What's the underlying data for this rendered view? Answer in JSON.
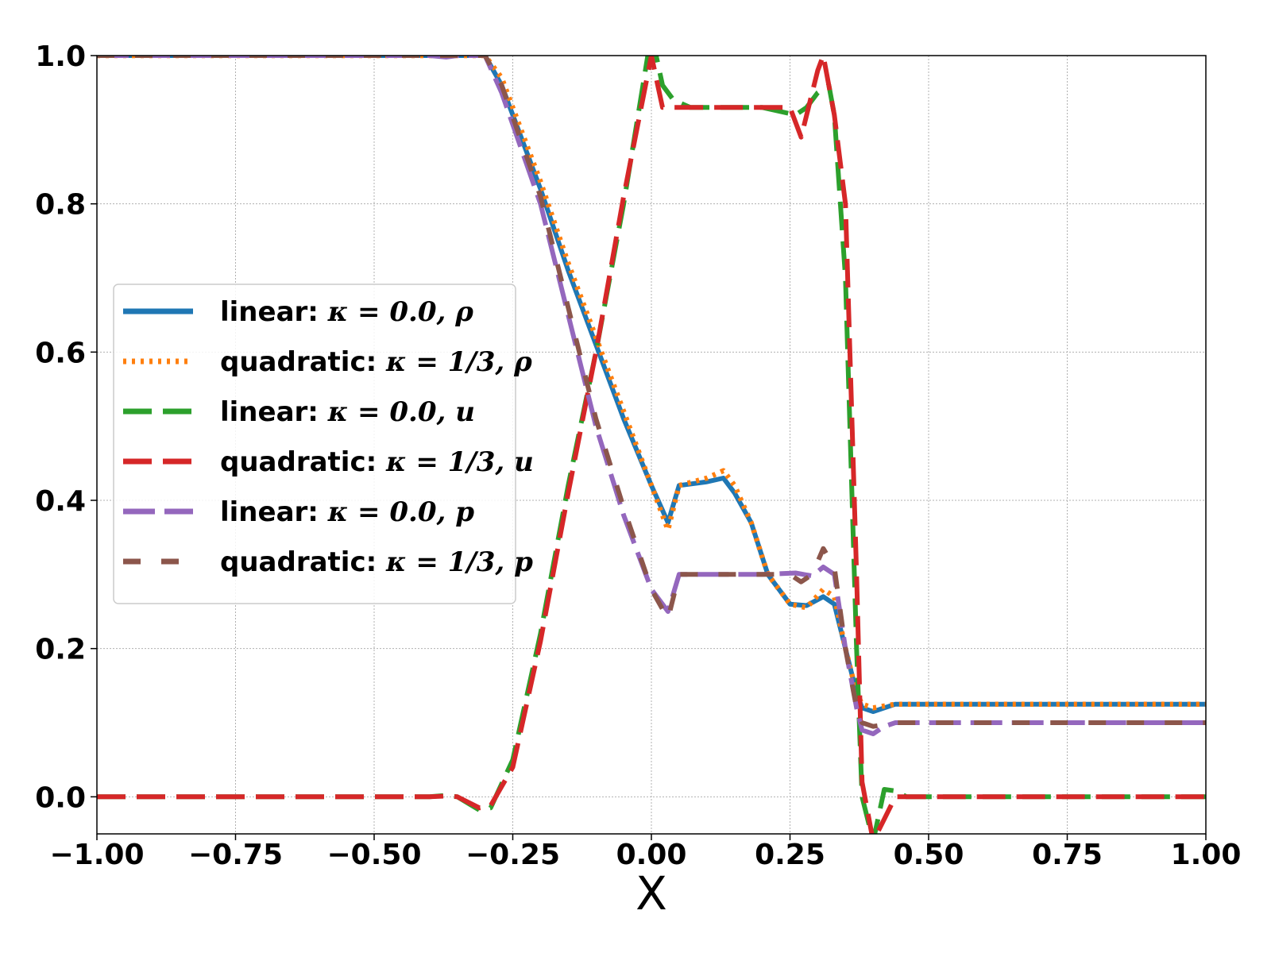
{
  "chart_data": {
    "type": "line",
    "xlabel": "X",
    "ylabel": "",
    "xlim": [
      -1.0,
      1.0
    ],
    "ylim": [
      -0.05,
      1.0
    ],
    "grid": true,
    "legend_position": "center-left",
    "x_ticks": [
      -1.0,
      -0.75,
      -0.5,
      -0.25,
      0.0,
      0.25,
      0.5,
      0.75,
      1.0
    ],
    "x_tick_labels": [
      "−1.00",
      "−0.75",
      "−0.50",
      "−0.25",
      "0.00",
      "0.25",
      "0.50",
      "0.75",
      "1.00"
    ],
    "y_ticks": [
      0.0,
      0.2,
      0.4,
      0.6,
      0.8,
      1.0
    ],
    "y_tick_labels": [
      "0.0",
      "0.2",
      "0.4",
      "0.6",
      "0.8",
      "1.0"
    ],
    "series": [
      {
        "name": "linear: κ = 0.0, ρ",
        "prefix": "linear: ",
        "kappa": "0.0",
        "var": "ρ",
        "color": "#1f77b4",
        "style": "solid",
        "x": [
          -1.0,
          -0.3,
          -0.27,
          -0.2,
          -0.15,
          -0.1,
          -0.05,
          0.0,
          0.03,
          0.05,
          0.1,
          0.13,
          0.15,
          0.18,
          0.21,
          0.25,
          0.28,
          0.31,
          0.33,
          0.35,
          0.37,
          0.38,
          0.4,
          0.44,
          0.5,
          1.0
        ],
        "y": [
          1.0,
          1.0,
          0.96,
          0.82,
          0.71,
          0.61,
          0.51,
          0.42,
          0.37,
          0.42,
          0.425,
          0.43,
          0.41,
          0.37,
          0.3,
          0.26,
          0.258,
          0.27,
          0.26,
          0.2,
          0.14,
          0.12,
          0.115,
          0.125,
          0.125,
          0.125
        ]
      },
      {
        "name": "quadratic: κ = 1/3, ρ",
        "prefix": "quadratic: ",
        "kappa": "1/3",
        "var": "ρ",
        "color": "#ff7f0e",
        "style": "dotted",
        "x": [
          -1.0,
          -0.3,
          -0.27,
          -0.2,
          -0.15,
          -0.1,
          -0.05,
          0.0,
          0.03,
          0.05,
          0.1,
          0.13,
          0.15,
          0.18,
          0.21,
          0.25,
          0.28,
          0.31,
          0.33,
          0.35,
          0.37,
          0.38,
          0.4,
          0.44,
          0.5,
          1.0
        ],
        "y": [
          1.0,
          1.0,
          0.97,
          0.83,
          0.72,
          0.62,
          0.52,
          0.42,
          0.36,
          0.42,
          0.43,
          0.44,
          0.42,
          0.37,
          0.3,
          0.26,
          0.255,
          0.28,
          0.27,
          0.2,
          0.14,
          0.125,
          0.12,
          0.125,
          0.125,
          0.125
        ]
      },
      {
        "name": "linear: κ = 0.0, u",
        "prefix": "linear: ",
        "kappa": "0.0",
        "var": "u",
        "color": "#2ca02c",
        "style": "dash",
        "x": [
          -1.0,
          -0.4,
          -0.37,
          -0.35,
          -0.31,
          -0.29,
          -0.25,
          -0.2,
          -0.15,
          -0.1,
          -0.05,
          0.0,
          0.02,
          0.04,
          0.07,
          0.1,
          0.2,
          0.26,
          0.28,
          0.3,
          0.32,
          0.33,
          0.35,
          0.37,
          0.38,
          0.4,
          0.42,
          0.44,
          0.46,
          0.5,
          1.0
        ],
        "y": [
          0.0,
          0.0,
          0.002,
          0.0,
          -0.018,
          -0.015,
          0.05,
          0.22,
          0.42,
          0.6,
          0.8,
          1.03,
          0.96,
          0.94,
          0.93,
          0.93,
          0.93,
          0.92,
          0.93,
          0.95,
          0.96,
          0.92,
          0.7,
          0.2,
          0.0,
          -0.06,
          0.01,
          0.008,
          0.0,
          0.0,
          0.0
        ]
      },
      {
        "name": "quadratic: κ = 1/3, u",
        "prefix": "quadratic: ",
        "kappa": "1/3",
        "var": "u",
        "color": "#d62728",
        "style": "dash",
        "x": [
          -1.0,
          -0.4,
          -0.37,
          -0.35,
          -0.31,
          -0.29,
          -0.25,
          -0.2,
          -0.15,
          -0.1,
          -0.05,
          0.0,
          0.02,
          0.04,
          0.07,
          0.1,
          0.2,
          0.25,
          0.27,
          0.3,
          0.31,
          0.33,
          0.35,
          0.37,
          0.38,
          0.4,
          0.42,
          0.44,
          0.46,
          0.5,
          1.0
        ],
        "y": [
          0.0,
          0.0,
          0.001,
          0.0,
          -0.015,
          -0.012,
          0.04,
          0.21,
          0.41,
          0.6,
          0.81,
          1.0,
          0.93,
          0.93,
          0.93,
          0.93,
          0.93,
          0.93,
          0.89,
          0.98,
          1.0,
          0.92,
          0.8,
          0.3,
          0.02,
          -0.06,
          -0.03,
          0.0,
          0.0,
          0.0,
          0.0
        ]
      },
      {
        "name": "linear: κ = 0.0, p",
        "prefix": "linear: ",
        "kappa": "0.0",
        "var": "p",
        "color": "#9467bd",
        "style": "longdash",
        "x": [
          -1.0,
          -0.4,
          -0.37,
          -0.35,
          -0.3,
          -0.27,
          -0.2,
          -0.15,
          -0.1,
          -0.05,
          0.0,
          0.03,
          0.05,
          0.1,
          0.2,
          0.26,
          0.29,
          0.31,
          0.33,
          0.35,
          0.37,
          0.38,
          0.4,
          0.42,
          0.44,
          0.5,
          1.0
        ],
        "y": [
          1.0,
          1.0,
          0.998,
          1.0,
          1.0,
          0.95,
          0.8,
          0.65,
          0.5,
          0.38,
          0.28,
          0.25,
          0.3,
          0.3,
          0.3,
          0.302,
          0.298,
          0.31,
          0.3,
          0.2,
          0.12,
          0.09,
          0.085,
          0.095,
          0.1,
          0.1,
          0.1
        ]
      },
      {
        "name": "quadratic: κ = 1/3, p",
        "prefix": "quadratic: ",
        "kappa": "1/3",
        "var": "p",
        "color": "#8c564b",
        "style": "shortdash",
        "x": [
          -1.0,
          -0.3,
          -0.27,
          -0.2,
          -0.15,
          -0.1,
          -0.05,
          0.0,
          0.03,
          0.05,
          0.1,
          0.2,
          0.25,
          0.27,
          0.29,
          0.31,
          0.33,
          0.35,
          0.37,
          0.38,
          0.4,
          0.44,
          0.5,
          1.0
        ],
        "y": [
          1.0,
          1.0,
          0.96,
          0.81,
          0.66,
          0.51,
          0.39,
          0.28,
          0.24,
          0.3,
          0.3,
          0.3,
          0.3,
          0.29,
          0.3,
          0.335,
          0.31,
          0.2,
          0.12,
          0.1,
          0.095,
          0.1,
          0.1,
          0.1
        ]
      }
    ]
  }
}
